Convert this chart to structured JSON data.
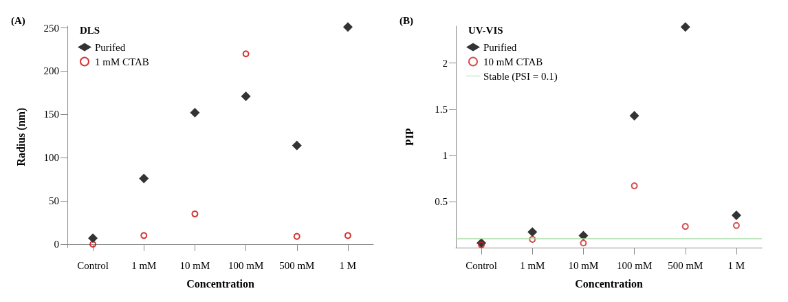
{
  "chart_data": [
    {
      "type": "scatter",
      "annotations": [
        "(A)"
      ],
      "legend_title": "DLS",
      "xlabel": "Concentration",
      "ylabel": "Radius (nm)",
      "categories": [
        "Control",
        "1 mM",
        "10 mM",
        "100 mM",
        "500 mM",
        "1 M"
      ],
      "series": [
        {
          "name": "Purifed",
          "color": "#000000",
          "marker": "diamond",
          "values": [
            7,
            76,
            152,
            171,
            114,
            251
          ]
        },
        {
          "name": "1 mM CTAB",
          "color": "#cc0000",
          "marker": "circle",
          "values": [
            0,
            10,
            35,
            220,
            9,
            10
          ]
        }
      ],
      "ylim": [
        -4,
        252
      ],
      "yticks": [
        0,
        50,
        100,
        150,
        200,
        250
      ],
      "grid": false,
      "legend": "top left"
    },
    {
      "type": "scatter",
      "annotations": [
        "(B)"
      ],
      "legend_title": "UV-VIS",
      "xlabel": "Concentration",
      "ylabel": "PIP",
      "categories": [
        "Control",
        "1 mM",
        "10 mM",
        "100 mM",
        "500 mM",
        "1 M"
      ],
      "series": [
        {
          "name": "Purified",
          "color": "#000000",
          "marker": "diamond",
          "values": [
            0.05,
            0.17,
            0.13,
            1.43,
            2.39,
            0.35
          ]
        },
        {
          "name": "10 mM CTAB",
          "color": "#cc2222",
          "marker": "circle",
          "values": [
            0.03,
            0.09,
            0.05,
            0.67,
            0.23,
            0.24
          ]
        }
      ],
      "ref_lines": [
        {
          "axis": "y",
          "value": 0.1,
          "label": "Stable (PSI = 0.1)",
          "color": "#a8dca8",
          "line_style": "solid"
        }
      ],
      "ylim": [
        0,
        2.4
      ],
      "yticks": [
        0.5,
        1.0,
        1.5,
        2.0
      ],
      "grid": false,
      "legend": "top left"
    }
  ]
}
